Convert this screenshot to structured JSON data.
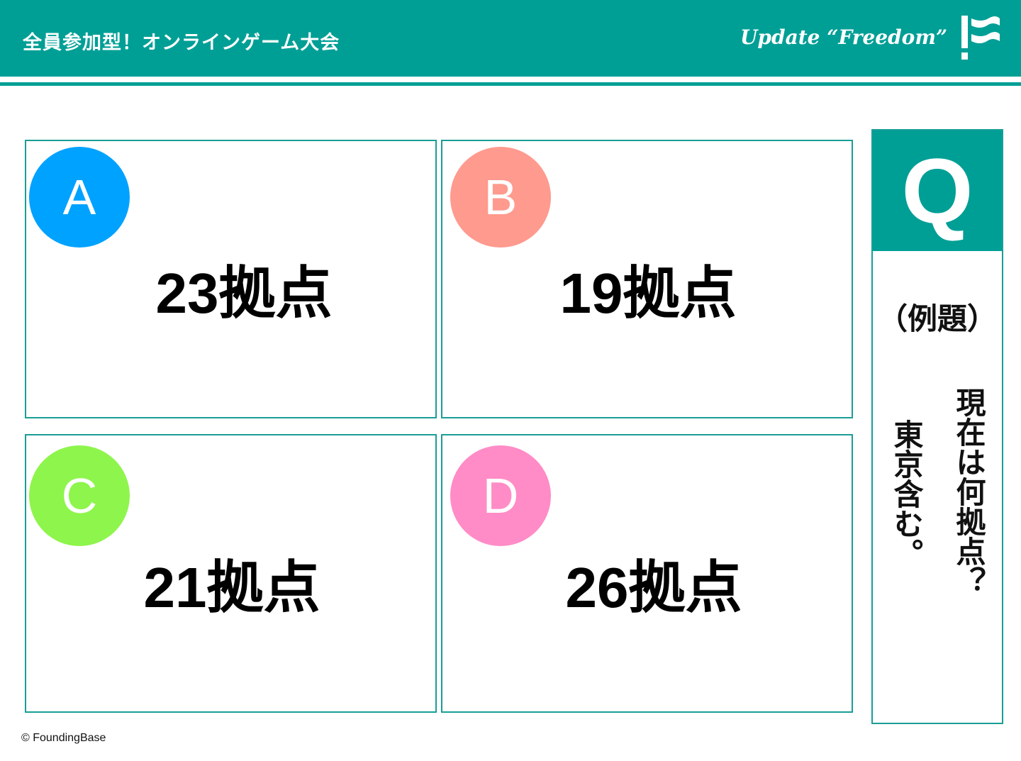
{
  "header": {
    "title": "全員参加型！オンラインゲーム大会",
    "tagline": "Update “Freedom”",
    "logo": "FoundingBase flag logo"
  },
  "options": [
    {
      "letter": "A",
      "answer": "23拠点",
      "color": "#00a2ff"
    },
    {
      "letter": "B",
      "answer": "19拠点",
      "color": "#ff9a8e"
    },
    {
      "letter": "C",
      "answer": "21拠点",
      "color": "#8ef54c"
    },
    {
      "letter": "D",
      "answer": "26拠点",
      "color": "#ff8cc6"
    }
  ],
  "question": {
    "label": "Q",
    "example": "（例題）",
    "line1": "現在は何拠点？",
    "line2": "東京含む。"
  },
  "footer": {
    "copyright": "© FoundingBase"
  },
  "colors": {
    "accent": "#009f96"
  }
}
